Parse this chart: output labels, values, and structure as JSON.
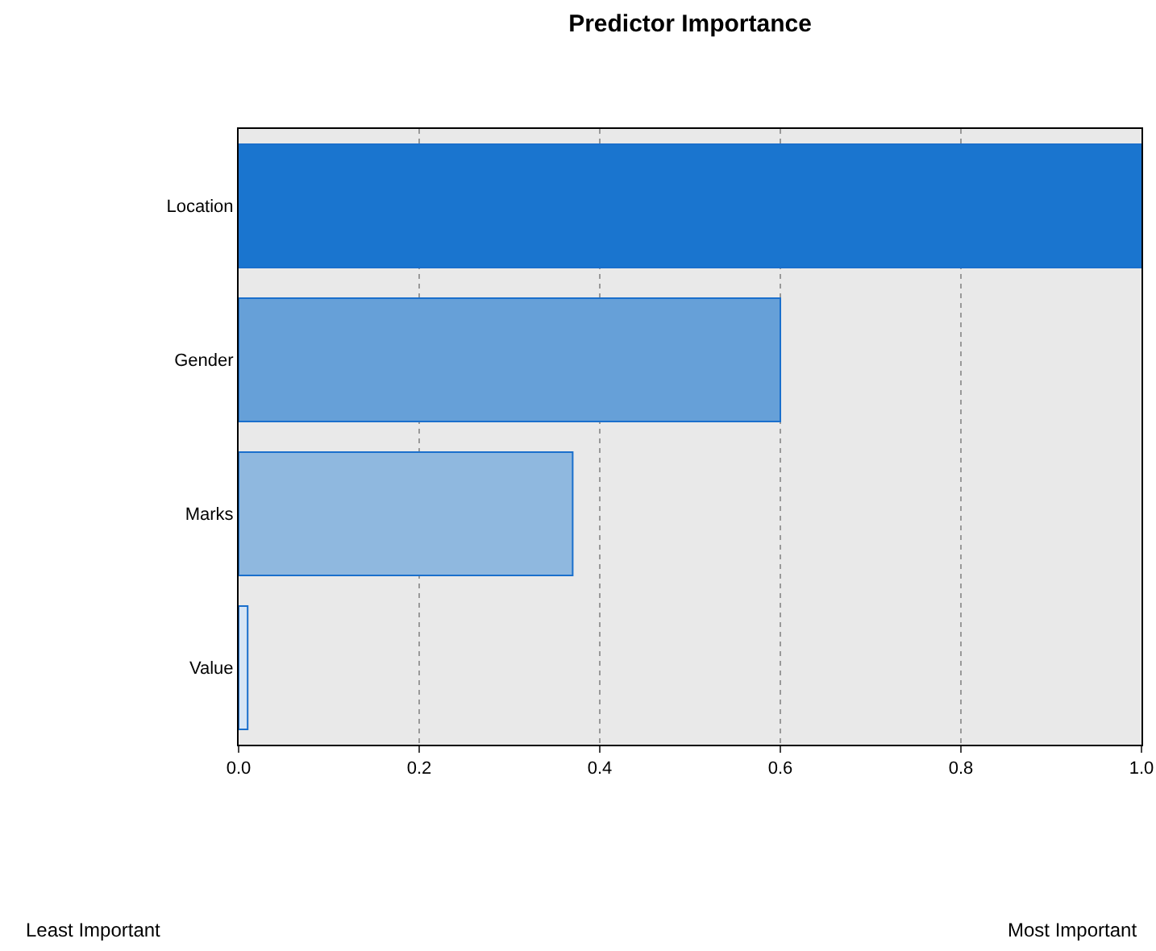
{
  "chart_data": {
    "type": "bar",
    "orientation": "horizontal",
    "title": "Predictor Importance",
    "categories": [
      "Location",
      "Gender",
      "Marks",
      "Value"
    ],
    "values": [
      1.0,
      0.6,
      0.37,
      0.01
    ],
    "colors": [
      "#1a75cf",
      "#66a0d8",
      "#8fb8df",
      "#d6e5f5"
    ],
    "xlim": [
      0,
      1
    ],
    "xticks": [
      {
        "value": 0,
        "label": "0.0"
      },
      0.2,
      0.4,
      0.6,
      0.8,
      {
        "value": 1,
        "label": "1.0"
      }
    ],
    "grid": "x",
    "annotations": [
      "Least Important",
      "Most Important"
    ]
  }
}
